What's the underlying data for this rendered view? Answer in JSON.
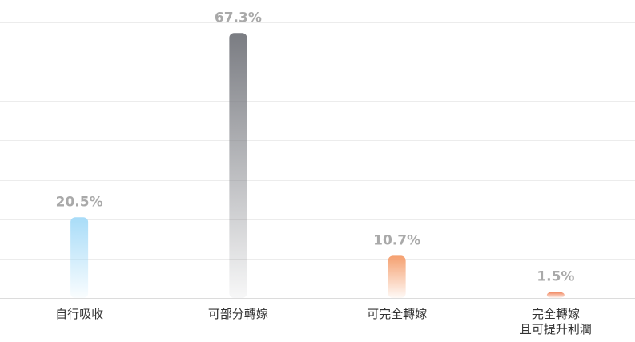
{
  "chart_data": {
    "type": "bar",
    "categories": [
      "自行吸收",
      "可部分轉嫁",
      "可完全轉嫁",
      "完全轉嫁\n且可提升利潤"
    ],
    "values": [
      20.5,
      67.3,
      10.7,
      1.5
    ],
    "value_labels": [
      "20.5%",
      "67.3%",
      "10.7%",
      "1.5%"
    ],
    "colors": [
      "#a8dcf8",
      "#7a7c82",
      "#f5a070",
      "#f0855c"
    ],
    "ylim": [
      0,
      70
    ],
    "yticks": [
      0,
      10,
      20,
      30,
      40,
      50,
      60,
      70
    ],
    "grid": true
  }
}
